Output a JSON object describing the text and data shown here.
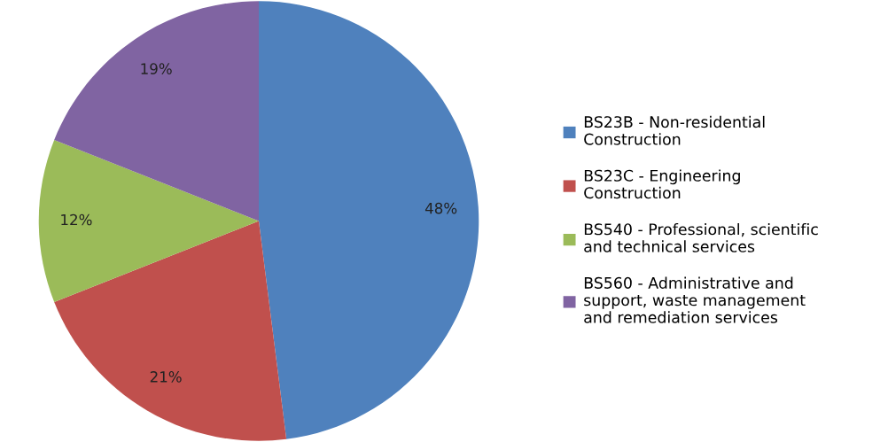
{
  "chart_data": {
    "type": "pie",
    "categories": [
      "BS23B - Non-residential\nConstruction",
      "BS23C - Engineering\nConstruction",
      "BS540 - Professional, scientific\nand technical services",
      "BS560 - Administrative and\nsupport, waste management\nand remediation services"
    ],
    "values": [
      48,
      21,
      12,
      19
    ],
    "colors": [
      "#4f81bd",
      "#c0504d",
      "#9bbb59",
      "#8064a2"
    ],
    "value_labels": [
      "48%",
      "21%",
      "12%",
      "19%"
    ],
    "legend": "right"
  }
}
